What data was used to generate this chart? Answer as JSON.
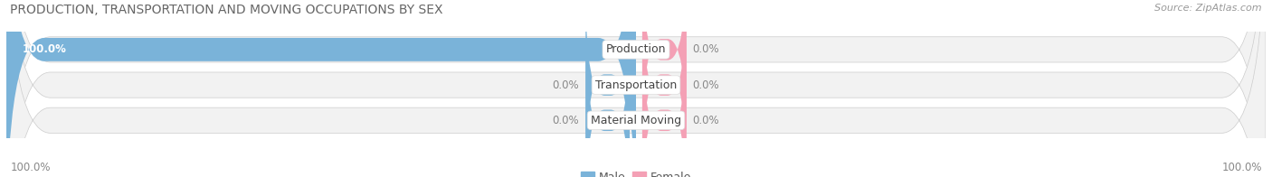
{
  "title": "PRODUCTION, TRANSPORTATION AND MOVING OCCUPATIONS BY SEX",
  "source": "Source: ZipAtlas.com",
  "categories": [
    "Production",
    "Transportation",
    "Material Moving"
  ],
  "male_values": [
    100.0,
    0.0,
    0.0
  ],
  "female_values": [
    0.0,
    0.0,
    0.0
  ],
  "male_color": "#7ab3d9",
  "female_color": "#f4a0b5",
  "bar_bg_color": "#e8e8e8",
  "bar_bg_color2": "#f2f2f2",
  "title_fontsize": 10,
  "source_fontsize": 8,
  "label_fontsize": 8.5,
  "category_fontsize": 9,
  "legend_fontsize": 9,
  "figsize": [
    14.06,
    1.96
  ],
  "dpi": 100
}
